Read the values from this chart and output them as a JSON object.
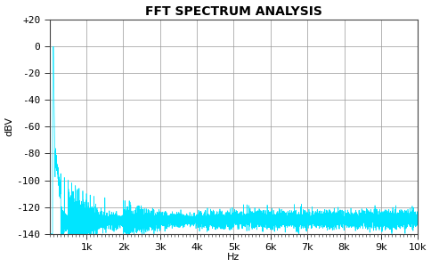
{
  "title": "FFT SPECTRUM ANALYSIS",
  "xlabel": "Hz",
  "ylabel": "dBV",
  "xlim": [
    0,
    10000
  ],
  "ylim": [
    -140,
    20
  ],
  "yticks": [
    20,
    0,
    -20,
    -40,
    -60,
    -80,
    -100,
    -120,
    -140
  ],
  "ytick_labels": [
    "+20",
    "0",
    "-20",
    "-40",
    "-60",
    "-80",
    "-100",
    "-120",
    "-140"
  ],
  "xticks": [
    1000,
    2000,
    3000,
    4000,
    5000,
    6000,
    7000,
    8000,
    9000,
    10000
  ],
  "xtick_labels": [
    "1k",
    "2k",
    "3k",
    "4k",
    "5k",
    "6k",
    "7k",
    "8k",
    "9k",
    "10k"
  ],
  "line_color": "#00E5FF",
  "background_color": "#FFFFFF",
  "plot_bg_color": "#FFFFFF",
  "grid_color": "#999999",
  "title_fontsize": 10,
  "axis_fontsize": 8,
  "tick_fontsize": 8
}
